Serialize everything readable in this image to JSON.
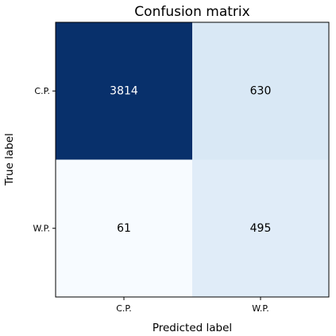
{
  "chart_data": {
    "type": "heatmap",
    "title": "Confusion matrix",
    "xlabel": "Predicted label",
    "ylabel": "True label",
    "x_categories": [
      "C.P.",
      "W.P."
    ],
    "y_categories": [
      "C.P.",
      "W.P."
    ],
    "values": [
      [
        3814,
        630
      ],
      [
        61,
        495
      ]
    ],
    "colormap": "Blues",
    "color_low": "#f7fbff",
    "color_high": "#08306b",
    "text_color_dark": "#000000",
    "text_color_light": "#ffffff",
    "grid": false,
    "legend": "none"
  }
}
